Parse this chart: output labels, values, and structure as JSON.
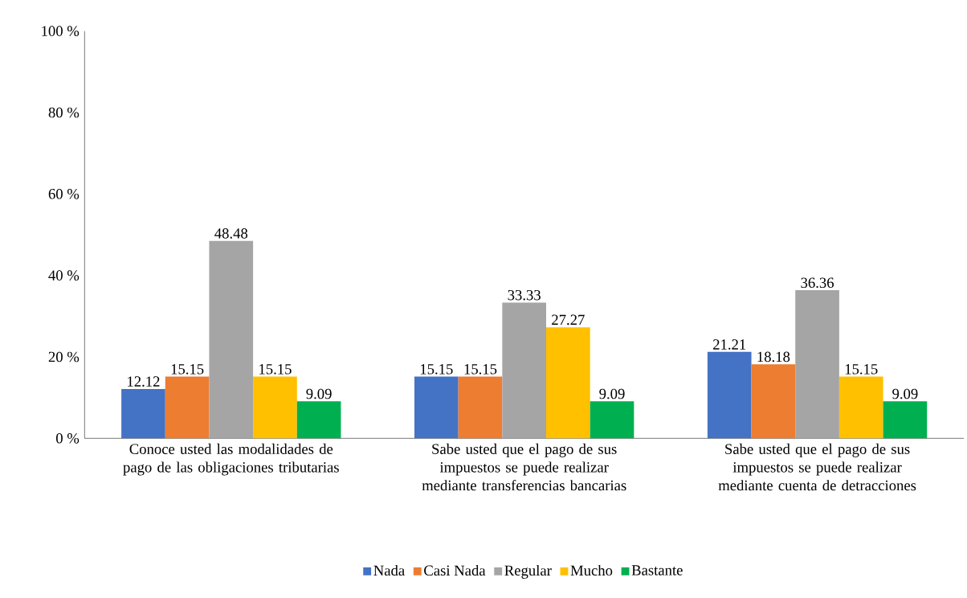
{
  "chart_data": {
    "type": "bar",
    "categories": [
      "Conoce usted las modalidades de pago de las obligaciones tributarias",
      "Sabe usted que el pago de sus impuestos se puede realizar mediante transferencias bancarias",
      "Sabe usted que el pago de sus impuestos se puede realizar mediante cuenta de detracciones"
    ],
    "series": [
      {
        "name": "Nada",
        "color": "#4472c4",
        "values": [
          12.12,
          15.15,
          21.21
        ]
      },
      {
        "name": "Casi Nada",
        "color": "#ed7d31",
        "values": [
          15.15,
          15.15,
          18.18
        ]
      },
      {
        "name": "Regular",
        "color": "#a5a5a5",
        "values": [
          48.48,
          33.33,
          36.36
        ]
      },
      {
        "name": "Mucho",
        "color": "#ffc000",
        "values": [
          15.15,
          27.27,
          15.15
        ]
      },
      {
        "name": "Bastante",
        "color": "#00b050",
        "values": [
          9.09,
          9.09,
          9.09
        ]
      }
    ],
    "ylim": [
      0,
      100
    ],
    "yticks": [
      {
        "value": 0,
        "label": "0 %"
      },
      {
        "value": 20,
        "label": "20 %"
      },
      {
        "value": 40,
        "label": "40 %"
      },
      {
        "value": 60,
        "label": "60 %"
      },
      {
        "value": 80,
        "label": "80 %"
      },
      {
        "value": 100,
        "label": "100 %"
      }
    ],
    "data_labels": true,
    "legend": "bottom",
    "grid": false
  }
}
